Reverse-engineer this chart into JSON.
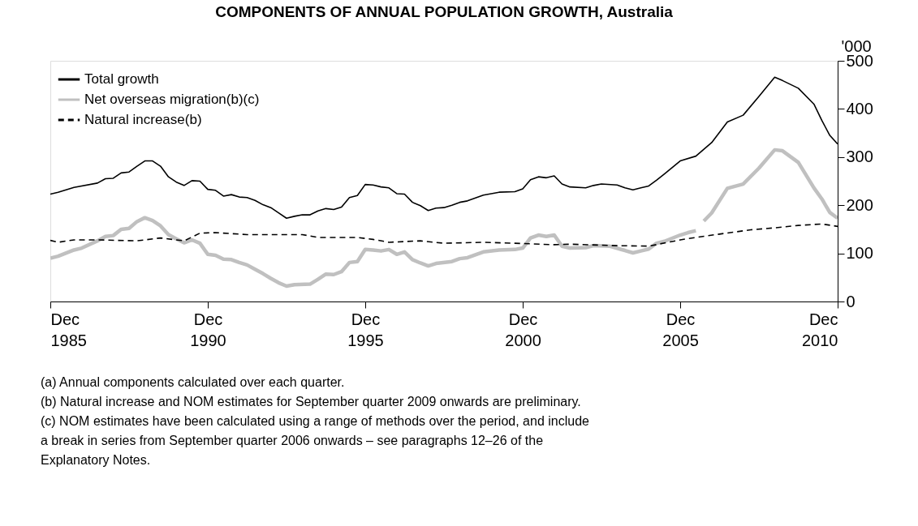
{
  "chart_data": {
    "type": "line",
    "title": "COMPONENTS OF ANNUAL POPULATION GROWTH, Australia",
    "ylabel": "'000",
    "xlim": [
      "1985-12",
      "2010-12"
    ],
    "xticks": [
      {
        "value": "1985-12",
        "label": "Dec 1985"
      },
      {
        "value": "1990-12",
        "label": "Dec 1990"
      },
      {
        "value": "1995-12",
        "label": "Dec 1995"
      },
      {
        "value": "2000-12",
        "label": "Dec 2000"
      },
      {
        "value": "2005-12",
        "label": "Dec 2005"
      },
      {
        "value": "2010-12",
        "label": "Dec 2010"
      }
    ],
    "ylim": [
      0,
      500
    ],
    "yticks": [
      0,
      100,
      200,
      300,
      400,
      500
    ],
    "grid": false,
    "legend": "top left",
    "marker": "none",
    "series": [
      {
        "name": "Total growth",
        "color": "#000000",
        "line_style": "solid",
        "x": [
          "1985-12",
          "1986-03",
          "1986-09",
          "1987-06",
          "1987-09",
          "1987-12",
          "1988-03",
          "1988-06",
          "1988-09",
          "1988-12",
          "1989-03",
          "1989-06",
          "1989-09",
          "1989-12",
          "1990-03",
          "1990-06",
          "1990-09",
          "1990-12",
          "1991-03",
          "1991-06",
          "1991-09",
          "1991-12",
          "1992-03",
          "1992-06",
          "1992-09",
          "1992-12",
          "1993-03",
          "1993-06",
          "1993-09",
          "1993-12",
          "1994-03",
          "1994-06",
          "1994-09",
          "1994-12",
          "1995-03",
          "1995-06",
          "1995-09",
          "1995-12",
          "1996-03",
          "1996-06",
          "1996-09",
          "1996-12",
          "1997-03",
          "1997-06",
          "1997-09",
          "1997-12",
          "1998-03",
          "1998-06",
          "1998-09",
          "1998-12",
          "1999-03",
          "1999-06",
          "1999-09",
          "1999-12",
          "2000-03",
          "2000-09",
          "2000-12",
          "2001-03",
          "2001-06",
          "2001-09",
          "2001-12",
          "2002-03",
          "2002-06",
          "2002-12",
          "2003-03",
          "2003-06",
          "2003-12",
          "2004-03",
          "2004-06",
          "2004-09",
          "2004-12",
          "2005-03",
          "2005-06",
          "2005-12",
          "2006-06",
          "2006-12",
          "2007-06",
          "2007-12",
          "2008-06",
          "2008-12",
          "2009-03",
          "2009-09",
          "2010-03",
          "2010-06",
          "2010-09",
          "2010-12"
        ],
        "values": [
          223,
          227,
          237,
          246,
          255,
          256,
          267,
          269,
          281,
          292,
          292,
          281,
          259,
          248,
          241,
          251,
          250,
          233,
          231,
          219,
          222,
          217,
          216,
          210,
          201,
          195,
          184,
          173,
          177,
          180,
          180,
          188,
          193,
          191,
          196,
          216,
          220,
          243,
          242,
          238,
          236,
          224,
          223,
          206,
          199,
          189,
          194,
          195,
          200,
          206,
          209,
          215,
          221,
          224,
          227,
          228,
          234,
          253,
          259,
          257,
          261,
          244,
          238,
          236,
          241,
          244,
          242,
          236,
          232,
          236,
          240,
          252,
          265,
          292,
          302,
          330,
          373,
          387,
          426,
          466,
          459,
          443,
          410,
          376,
          345,
          327
        ]
      },
      {
        "name": "Net overseas migration(b)(c)",
        "color": "#c0c0c0",
        "line_style": "solid",
        "x": [
          "1985-12",
          "1986-03",
          "1986-09",
          "1986-12",
          "1987-06",
          "1987-09",
          "1987-12",
          "1988-03",
          "1988-06",
          "1988-09",
          "1988-12",
          "1989-03",
          "1989-06",
          "1989-09",
          "1989-12",
          "1990-03",
          "1990-06",
          "1990-09",
          "1990-12",
          "1991-03",
          "1991-06",
          "1991-09",
          "1991-12",
          "1992-03",
          "1992-06",
          "1992-09",
          "1992-12",
          "1993-03",
          "1993-06",
          "1993-09",
          "1994-03",
          "1994-06",
          "1994-09",
          "1994-12",
          "1995-03",
          "1995-06",
          "1995-09",
          "1995-12",
          "1996-03",
          "1996-06",
          "1996-09",
          "1996-12",
          "1997-03",
          "1997-06",
          "1997-09",
          "1997-12",
          "1998-03",
          "1998-09",
          "1998-12",
          "1999-03",
          "1999-06",
          "1999-09",
          "2000-03",
          "2000-09",
          "2000-12",
          "2001-03",
          "2001-06",
          "2001-09",
          "2001-12",
          "2002-03",
          "2002-06",
          "2002-12",
          "2003-03",
          "2003-09",
          "2004-03",
          "2004-06",
          "2004-09",
          "2004-12",
          "2005-03",
          "2005-06",
          "2005-12",
          "2006-03",
          "2006-06",
          "2006-08",
          "2006-09",
          "2006-12",
          "2007-06",
          "2007-12",
          "2008-06",
          "2008-12",
          "2009-03",
          "2009-09",
          "2010-03",
          "2010-06",
          "2010-09",
          "2010-12"
        ],
        "values": [
          90,
          94,
          107,
          111,
          126,
          135,
          137,
          150,
          152,
          166,
          174,
          168,
          157,
          139,
          130,
          122,
          128,
          121,
          98,
          96,
          88,
          87,
          81,
          76,
          67,
          58,
          48,
          39,
          32,
          35,
          36,
          46,
          57,
          56,
          62,
          81,
          83,
          108,
          107,
          105,
          108,
          98,
          103,
          87,
          80,
          74,
          79,
          83,
          89,
          91,
          97,
          103,
          107,
          108,
          111,
          132,
          138,
          135,
          138,
          115,
          111,
          112,
          116,
          115,
          106,
          101,
          105,
          109,
          121,
          125,
          138,
          143,
          147,
          null,
          167,
          184,
          235,
          244,
          277,
          315,
          313,
          289,
          236,
          213,
          185,
          173
        ]
      },
      {
        "name": "Natural increase(b)",
        "color": "#000000",
        "line_style": "dashed",
        "x": [
          "1985-12",
          "1986-03",
          "1986-09",
          "1987-06",
          "1988-09",
          "1989-06",
          "1990-03",
          "1990-09",
          "1991-03",
          "1992-03",
          "1993-03",
          "1993-12",
          "1994-06",
          "1995-09",
          "1996-03",
          "1996-09",
          "1997-09",
          "1998-06",
          "1999-09",
          "2000-09",
          "2001-12",
          "2002-06",
          "2003-12",
          "2004-12",
          "2005-12",
          "2006-06",
          "2007-03",
          "2008-03",
          "2008-12",
          "2009-09",
          "2010-06",
          "2010-12"
        ],
        "values": [
          127,
          123,
          128,
          128,
          126,
          132,
          126,
          142,
          143,
          139,
          139,
          139,
          133,
          133,
          129,
          123,
          126,
          121,
          123,
          121,
          118,
          119,
          116,
          115,
          128,
          133,
          140,
          149,
          153,
          158,
          161,
          156
        ]
      }
    ],
    "annotations": [
      "(a) Annual components calculated over each quarter.",
      "(b) Natural increase and NOM estimates for September quarter 2009 onwards are preliminary.",
      "(c) NOM estimates have been calculated using a range of methods over the period, and include a break in series from September quarter 2006 onwards – see paragraphs 12–26 of the Explanatory Notes."
    ]
  }
}
